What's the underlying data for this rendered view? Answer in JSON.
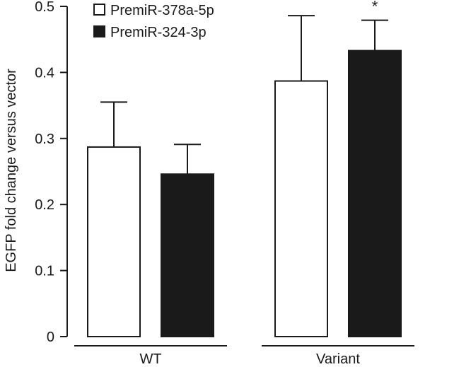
{
  "chart_data": {
    "type": "bar",
    "title": "",
    "xlabel": "",
    "ylabel": "EGFP fold change versus vector",
    "ylim": [
      0,
      0.5
    ],
    "yticks": [
      0,
      0.1,
      0.2,
      0.3,
      0.4,
      0.5
    ],
    "ytick_labels": [
      "0",
      "0.1",
      "0.2",
      "0.3",
      "0.4",
      "0.5"
    ],
    "categories": [
      "WT",
      "Variant"
    ],
    "series": [
      {
        "name": "PremiR-378a-5p",
        "fill": "#ffffff",
        "values": [
          0.287,
          0.387
        ],
        "errors": [
          0.068,
          0.099
        ]
      },
      {
        "name": "PremiR-324-3p",
        "fill": "#1a1a1a",
        "values": [
          0.246,
          0.433
        ],
        "errors": [
          0.045,
          0.046
        ]
      }
    ],
    "annotations": [
      {
        "series": 1,
        "category": 1,
        "text": "*"
      }
    ],
    "grid": false,
    "legend_position": "top-left"
  },
  "colors": {
    "axis": "#1a1a1a",
    "background": "#ffffff"
  }
}
